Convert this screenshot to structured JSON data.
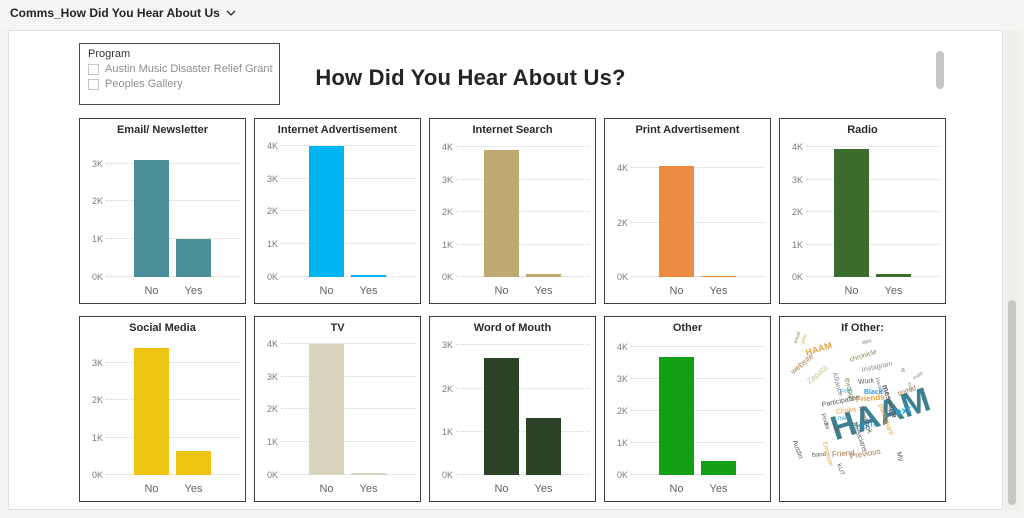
{
  "page": {
    "tab_label": "Comms_How Did You Hear About Us",
    "title": "How Did You Hear About Us?"
  },
  "filters": {
    "program": {
      "label": "Program",
      "options": [
        {
          "label": "Austin Music Disaster Relief Grant",
          "checked": false
        },
        {
          "label": "Peoples Gallery",
          "checked": false
        }
      ]
    }
  },
  "chart_data": [
    {
      "type": "bar",
      "slug": "email-newsletter",
      "title": "Email/ Newsletter",
      "color": "#4A8E98",
      "categories": [
        "No",
        "Yes"
      ],
      "values": [
        3.1,
        1.0
      ],
      "unit": "K",
      "ylim": [
        0,
        3.6
      ],
      "yticks": [
        0,
        1,
        2,
        3
      ],
      "grid": "dotted",
      "legend": "none"
    },
    {
      "type": "bar",
      "slug": "internet-advertisement",
      "title": "Internet Advertisement",
      "color": "#00B3F1",
      "categories": [
        "No",
        "Yes"
      ],
      "values": [
        4.0,
        0.07
      ],
      "unit": "K",
      "ylim": [
        0,
        4.15
      ],
      "yticks": [
        0,
        1,
        2,
        3,
        4
      ],
      "grid": "dotted",
      "legend": "none"
    },
    {
      "type": "bar",
      "slug": "internet-search",
      "title": "Internet Search",
      "color": "#BFA871",
      "categories": [
        "No",
        "Yes"
      ],
      "values": [
        3.93,
        0.1
      ],
      "unit": "K",
      "ylim": [
        0,
        4.2
      ],
      "yticks": [
        0,
        1,
        2,
        3,
        4
      ],
      "grid": "dotted",
      "legend": "none"
    },
    {
      "type": "bar",
      "slug": "print-advertisement",
      "title": "Print Advertisement",
      "color": "#ED8B42",
      "categories": [
        "No",
        "Yes"
      ],
      "values": [
        4.07,
        0.05
      ],
      "unit": "K",
      "ylim": [
        0,
        5.0
      ],
      "yticks": [
        0,
        2,
        4
      ],
      "grid": "dotted",
      "legend": "none"
    },
    {
      "type": "bar",
      "slug": "radio",
      "title": "Radio",
      "color": "#3A6C2E",
      "categories": [
        "No",
        "Yes"
      ],
      "values": [
        3.95,
        0.1
      ],
      "unit": "K",
      "ylim": [
        0,
        4.2
      ],
      "yticks": [
        0,
        1,
        2,
        3,
        4
      ],
      "grid": "dotted",
      "legend": "none"
    },
    {
      "type": "bar",
      "slug": "social-media",
      "title": "Social Media",
      "color": "#EFC312",
      "categories": [
        "No",
        "Yes"
      ],
      "values": [
        3.4,
        0.65
      ],
      "unit": "K",
      "ylim": [
        0,
        3.65
      ],
      "yticks": [
        0,
        1,
        2,
        3
      ],
      "grid": "dotted",
      "legend": "none"
    },
    {
      "type": "bar",
      "slug": "tv",
      "title": "TV",
      "color": "#D8D5BC",
      "categories": [
        "No",
        "Yes"
      ],
      "values": [
        4.0,
        0.07
      ],
      "unit": "K",
      "ylim": [
        0,
        4.15
      ],
      "yticks": [
        0,
        1,
        2,
        3,
        4
      ],
      "grid": "dotted",
      "legend": "none"
    },
    {
      "type": "bar",
      "slug": "word-of-mouth",
      "title": "Word of Mouth",
      "color": "#2B4426",
      "categories": [
        "No",
        "Yes"
      ],
      "values": [
        2.72,
        1.33
      ],
      "unit": "K",
      "ylim": [
        0,
        3.15
      ],
      "yticks": [
        0,
        1,
        2,
        3
      ],
      "grid": "dotted",
      "legend": "none"
    },
    {
      "type": "bar",
      "slug": "other",
      "title": "Other",
      "color": "#14A014",
      "categories": [
        "No",
        "Yes"
      ],
      "values": [
        3.68,
        0.43
      ],
      "unit": "K",
      "ylim": [
        0,
        4.25
      ],
      "yticks": [
        0,
        1,
        2,
        3,
        4
      ],
      "grid": "dotted",
      "legend": "none"
    },
    {
      "type": "wordcloud",
      "slug": "if-other",
      "title": "If Other:",
      "words": [
        {
          "t": "HAAM",
          "x": 52,
          "y": 96,
          "s": 34,
          "c": "#3E7F91",
          "r": -18,
          "b": 1
        },
        {
          "t": "from",
          "x": 76,
          "y": 106,
          "s": 10,
          "c": "#2E9BD6",
          "r": -10
        },
        {
          "t": "Text",
          "x": 110,
          "y": 92,
          "s": 11,
          "c": "#29ABE2",
          "r": -12,
          "b": 1
        },
        {
          "t": "HAAM",
          "x": 26,
          "y": 32,
          "s": 9,
          "c": "#E8A33D",
          "r": -18,
          "b": 1
        },
        {
          "t": "website",
          "x": 12,
          "y": 52,
          "s": 8,
          "c": "#A87C52",
          "r": -40
        },
        {
          "t": "Zapata",
          "x": 28,
          "y": 62,
          "s": 8,
          "c": "#B9CB8F",
          "r": -40
        },
        {
          "t": "email",
          "x": 16,
          "y": 24,
          "s": 5,
          "c": "#7A8C4F",
          "r": -70
        },
        {
          "t": "post",
          "x": 23,
          "y": 24,
          "s": 5,
          "c": "#E8A33D",
          "r": -70
        },
        {
          "t": "alert",
          "x": 82,
          "y": 24,
          "s": 5,
          "c": "#777777",
          "r": -10
        },
        {
          "t": "chronicle",
          "x": 70,
          "y": 40,
          "s": 7,
          "c": "#7A8C4F",
          "r": -18
        },
        {
          "t": "Instagram",
          "x": 82,
          "y": 50,
          "s": 7,
          "c": "#8C8C8C",
          "r": -12
        },
        {
          "t": "a",
          "x": 121,
          "y": 50,
          "s": 7,
          "c": "#8C8C8C",
          "r": 0
        },
        {
          "t": "mate",
          "x": 134,
          "y": 60,
          "s": 5,
          "c": "#8C8C8C",
          "r": -35
        },
        {
          "t": "Alliance",
          "x": 54,
          "y": 52,
          "s": 7,
          "c": "#8C8C8C",
          "r": 75
        },
        {
          "t": "through",
          "x": 66,
          "y": 58,
          "s": 7,
          "c": "#7A8C4F",
          "r": 75
        },
        {
          "t": "Work",
          "x": 78,
          "y": 62,
          "s": 7,
          "c": "#5A5A5A",
          "r": -5
        },
        {
          "t": "Health",
          "x": 96,
          "y": 58,
          "s": 6,
          "c": "#8C8C8C",
          "r": 70
        },
        {
          "t": "message",
          "x": 104,
          "y": 64,
          "s": 8,
          "c": "#5A5A5A",
          "r": 72,
          "b": 1
        },
        {
          "t": "texted",
          "x": 118,
          "y": 74,
          "s": 7,
          "c": "#A87C52",
          "r": -20
        },
        {
          "t": "host",
          "x": 128,
          "y": 64,
          "s": 5,
          "c": "#8C8C8C",
          "r": 65
        },
        {
          "t": "Fret",
          "x": 60,
          "y": 72,
          "s": 7,
          "c": "#2E9BD6",
          "r": -10
        },
        {
          "t": "Black",
          "x": 84,
          "y": 72,
          "s": 7,
          "c": "#2E9BD6",
          "r": 0,
          "b": 1
        },
        {
          "t": "Friends",
          "x": 76,
          "y": 79,
          "s": 8,
          "c": "#E8A33D",
          "r": -5,
          "b": 1
        },
        {
          "t": "Participation",
          "x": 42,
          "y": 85,
          "s": 7,
          "c": "#5A5A5A",
          "r": -12
        },
        {
          "t": "Chaka",
          "x": 56,
          "y": 92,
          "s": 7,
          "c": "#E8A33D",
          "r": -8
        },
        {
          "t": "me",
          "x": 58,
          "y": 99,
          "s": 6,
          "c": "#2E9BD6",
          "r": 0
        },
        {
          "t": "Prior",
          "x": 42,
          "y": 94,
          "s": 6,
          "c": "#5A5A5A",
          "r": 70
        },
        {
          "t": "for",
          "x": 45,
          "y": 103,
          "s": 6,
          "c": "#5A5A5A",
          "r": 70
        },
        {
          "t": "facebook",
          "x": 80,
          "y": 86,
          "s": 7,
          "c": "#5A5A5A",
          "r": 70
        },
        {
          "t": "participant",
          "x": 100,
          "y": 84,
          "s": 7,
          "c": "#E8A33D",
          "r": 70
        },
        {
          "t": "Musicians",
          "x": 74,
          "y": 102,
          "s": 7,
          "c": "#5A5A5A",
          "r": 70
        },
        {
          "t": "M",
          "x": 54,
          "y": 110,
          "s": 6,
          "c": "#5A5A5A",
          "r": 0
        },
        {
          "t": "Austin",
          "x": 14,
          "y": 120,
          "s": 7,
          "c": "#5A5A5A",
          "r": 70
        },
        {
          "t": "Band",
          "x": 32,
          "y": 136,
          "s": 6,
          "c": "#5A5A5A",
          "r": -5
        },
        {
          "t": "Employer",
          "x": 44,
          "y": 122,
          "s": 6,
          "c": "#E8A33D",
          "r": 75
        },
        {
          "t": "Friend",
          "x": 52,
          "y": 134,
          "s": 8,
          "c": "#A87C52",
          "r": -5
        },
        {
          "t": "Previous",
          "x": 70,
          "y": 136,
          "s": 8,
          "c": "#A87C52",
          "r": -10
        },
        {
          "t": "KUT",
          "x": 58,
          "y": 144,
          "s": 6,
          "c": "#5A5A5A",
          "r": 70
        },
        {
          "t": "My",
          "x": 118,
          "y": 132,
          "s": 7,
          "c": "#5A5A5A",
          "r": 70
        }
      ]
    }
  ]
}
